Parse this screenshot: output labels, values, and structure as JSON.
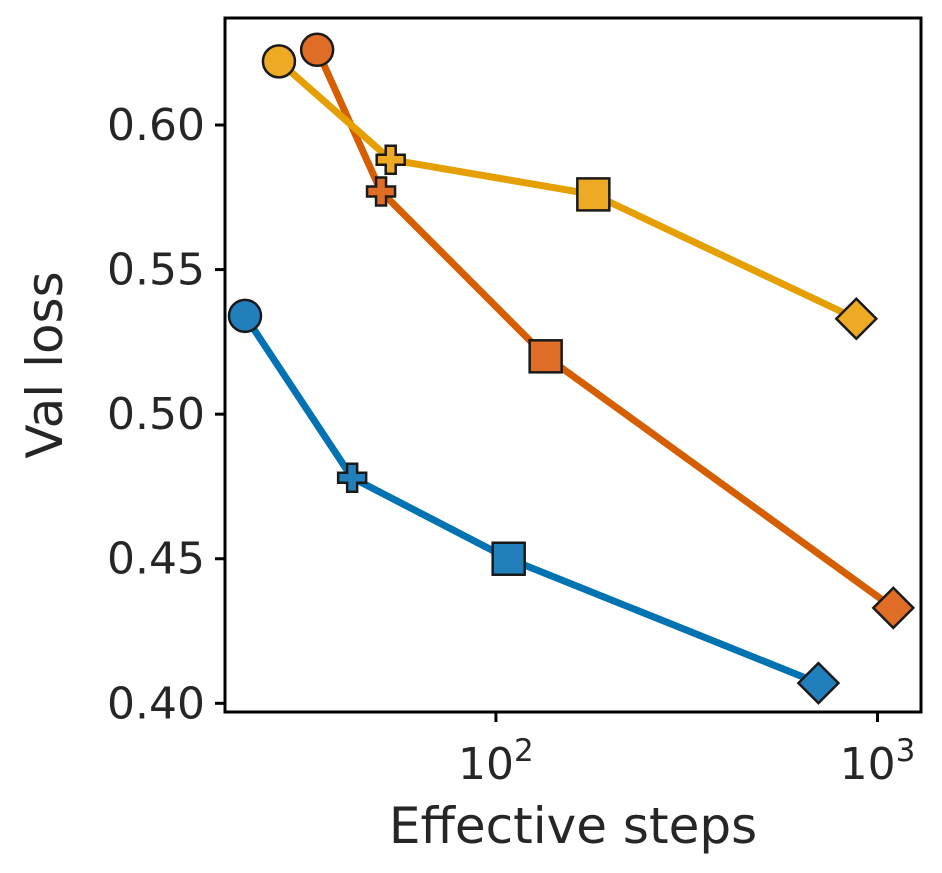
{
  "chart_data": {
    "type": "line",
    "title": "",
    "xlabel": "Effective steps",
    "ylabel": "Val loss",
    "xscale": "log",
    "xlim": [
      19.5,
      1300
    ],
    "ylim": [
      0.397,
      0.637
    ],
    "yticks": [
      0.4,
      0.45,
      0.5,
      0.55,
      0.6
    ],
    "ytick_labels": [
      "0.40",
      "0.45",
      "0.50",
      "0.55",
      "0.60"
    ],
    "xticks": [
      {
        "value": 100,
        "base": "10",
        "exp": "2"
      },
      {
        "value": 1000,
        "base": "10",
        "exp": "3"
      }
    ],
    "grid": false,
    "legend": "none",
    "marker_order": [
      "circle",
      "plus",
      "square",
      "diamond"
    ],
    "series": [
      {
        "name": "blue",
        "color": "#0173b2",
        "marker_fill": "#2180bc",
        "x": [
          22,
          42,
          108,
          700
        ],
        "y": [
          0.534,
          0.478,
          0.45,
          0.407
        ]
      },
      {
        "name": "orange",
        "color": "#d55e00",
        "marker_fill": "#e06d26",
        "x": [
          34,
          50,
          135,
          1100
        ],
        "y": [
          0.626,
          0.577,
          0.52,
          0.433
        ]
      },
      {
        "name": "yellow",
        "color": "#e59f01",
        "marker_fill": "#eeaa22",
        "x": [
          27,
          53,
          180,
          880
        ],
        "y": [
          0.622,
          0.588,
          0.576,
          0.533
        ]
      }
    ]
  }
}
